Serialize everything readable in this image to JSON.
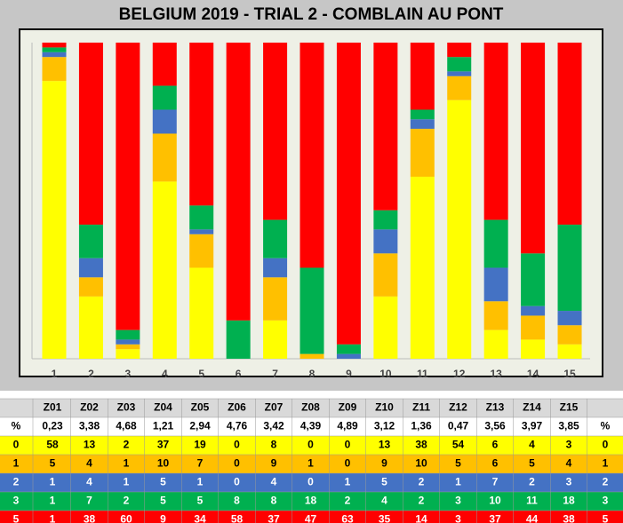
{
  "chart_data": {
    "type": "bar",
    "stacked": true,
    "title": "BELGIUM 2019 - TRIAL 2 - COMBLAIN AU PONT",
    "categories": [
      "1",
      "2",
      "3",
      "4",
      "5",
      "6",
      "7",
      "8",
      "9",
      "10",
      "11",
      "12",
      "13",
      "14",
      "15"
    ],
    "ylim": [
      0,
      66
    ],
    "series": [
      {
        "name": "0",
        "color": "#ffff00",
        "values": [
          58,
          13,
          2,
          37,
          19,
          0,
          8,
          0,
          0,
          13,
          38,
          54,
          6,
          4,
          3
        ]
      },
      {
        "name": "1",
        "color": "#ffc000",
        "values": [
          5,
          4,
          1,
          10,
          7,
          0,
          9,
          1,
          0,
          9,
          10,
          5,
          6,
          5,
          4
        ]
      },
      {
        "name": "2",
        "color": "#4472c4",
        "values": [
          1,
          4,
          1,
          5,
          1,
          0,
          4,
          0,
          1,
          5,
          2,
          1,
          7,
          2,
          3
        ]
      },
      {
        "name": "3",
        "color": "#00b050",
        "values": [
          1,
          7,
          2,
          5,
          5,
          8,
          8,
          18,
          2,
          4,
          2,
          3,
          10,
          11,
          18
        ]
      },
      {
        "name": "5",
        "color": "#ff0000",
        "values": [
          1,
          38,
          60,
          9,
          34,
          58,
          37,
          47,
          63,
          35,
          14,
          3,
          37,
          44,
          38
        ]
      }
    ]
  },
  "table": {
    "header": [
      "Z01",
      "Z02",
      "Z03",
      "Z04",
      "Z05",
      "Z06",
      "Z07",
      "Z08",
      "Z09",
      "Z10",
      "Z11",
      "Z12",
      "Z13",
      "Z14",
      "Z15"
    ],
    "percent_label": "%",
    "percent": [
      "0,23",
      "3,38",
      "4,68",
      "1,21",
      "2,94",
      "4,76",
      "3,42",
      "4,39",
      "4,89",
      "3,12",
      "1,36",
      "0,47",
      "3,56",
      "3,97",
      "3,85"
    ]
  }
}
